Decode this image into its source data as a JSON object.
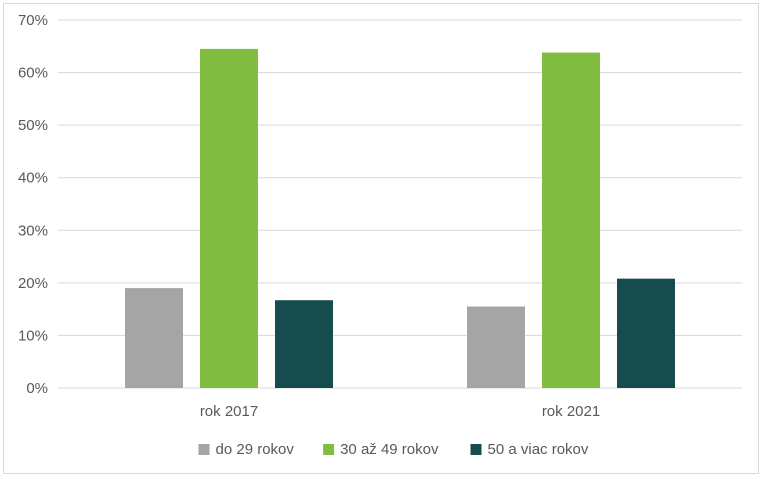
{
  "chart_data": {
    "type": "bar",
    "categories": [
      "rok 2017",
      "rok 2021"
    ],
    "series": [
      {
        "name": "do 29 rokov",
        "values": [
          0.19,
          0.155
        ],
        "color": "#a5a5a5"
      },
      {
        "name": "30 až 49 rokov",
        "values": [
          0.645,
          0.638
        ],
        "color": "#80bd41"
      },
      {
        "name": "50 a viac rokov",
        "values": [
          0.167,
          0.208
        ],
        "color": "#174c4f"
      }
    ],
    "ylim": [
      0,
      0.7
    ],
    "yticks": [
      {
        "value": 0,
        "label": "0%"
      },
      {
        "value": 0.1,
        "label": "10%"
      },
      {
        "value": 0.2,
        "label": "20%"
      },
      {
        "value": 0.3,
        "label": "30%"
      },
      {
        "value": 0.4,
        "label": "40%"
      },
      {
        "value": 0.5,
        "label": "50%"
      },
      {
        "value": 0.6,
        "label": "60%"
      },
      {
        "value": 0.7,
        "label": "70%"
      }
    ],
    "grid": true,
    "legend": "bottom"
  }
}
